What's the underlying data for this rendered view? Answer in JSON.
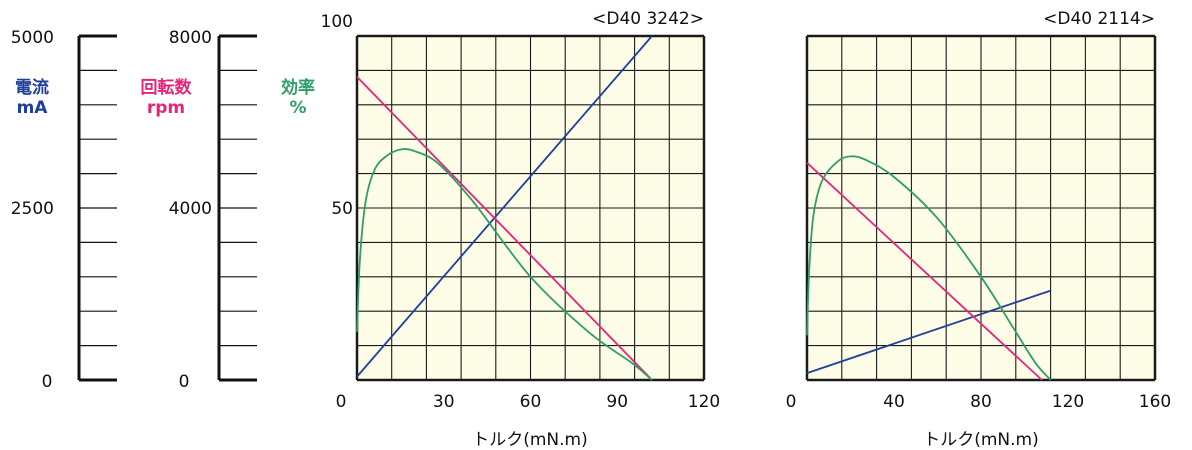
{
  "colors": {
    "current": "#1f3f99",
    "speed": "#e6257a",
    "efficiency": "#2e9e6a",
    "grid": "#1a1a1a",
    "plot_bg": "#fdfce6"
  },
  "scales": {
    "current": {
      "label": "電流",
      "unit": "mA",
      "ticks": [
        "5000",
        "2500",
        "0"
      ]
    },
    "speed": {
      "label": "回転数",
      "unit": "rpm",
      "ticks": [
        "8000",
        "4000",
        "0"
      ]
    },
    "efficiency": {
      "label": "効率",
      "unit": "%",
      "ticks": [
        "100",
        "50"
      ]
    }
  },
  "chart_data": [
    {
      "type": "line",
      "title": "<D40 3242>",
      "xlabel": "トルク(mN.m)",
      "xticks": [
        "0",
        "30",
        "60",
        "90",
        "120"
      ],
      "xlim": [
        0,
        120
      ],
      "series": [
        {
          "key": "current",
          "x": [
            0,
            102
          ],
          "y": [
            50,
            5000
          ]
        },
        {
          "key": "speed",
          "x": [
            0,
            102
          ],
          "y": [
            7050,
            0
          ]
        },
        {
          "key": "efficiency",
          "x": [
            0,
            1,
            3,
            6,
            10,
            15,
            20,
            28,
            40,
            60,
            80,
            95,
            102
          ],
          "y": [
            14,
            35,
            52,
            61,
            65,
            67,
            66.5,
            63,
            52,
            30,
            14,
            5,
            0
          ]
        }
      ]
    },
    {
      "type": "line",
      "title": "<D40 2114>",
      "xlabel": "トルク(mN.m)",
      "xticks": [
        "0",
        "40",
        "80",
        "120",
        "160"
      ],
      "xlim": [
        0,
        160
      ],
      "series": [
        {
          "key": "current",
          "x": [
            0,
            112
          ],
          "y": [
            100,
            1300
          ]
        },
        {
          "key": "speed",
          "x": [
            0,
            108
          ],
          "y": [
            5050,
            0
          ]
        },
        {
          "key": "efficiency",
          "x": [
            0,
            1,
            3,
            7,
            14,
            20,
            27,
            40,
            60,
            80,
            95,
            105,
            112
          ],
          "y": [
            13,
            32,
            48,
            58,
            63.5,
            65,
            64,
            59,
            47,
            30,
            15,
            5,
            0
          ]
        }
      ]
    }
  ]
}
